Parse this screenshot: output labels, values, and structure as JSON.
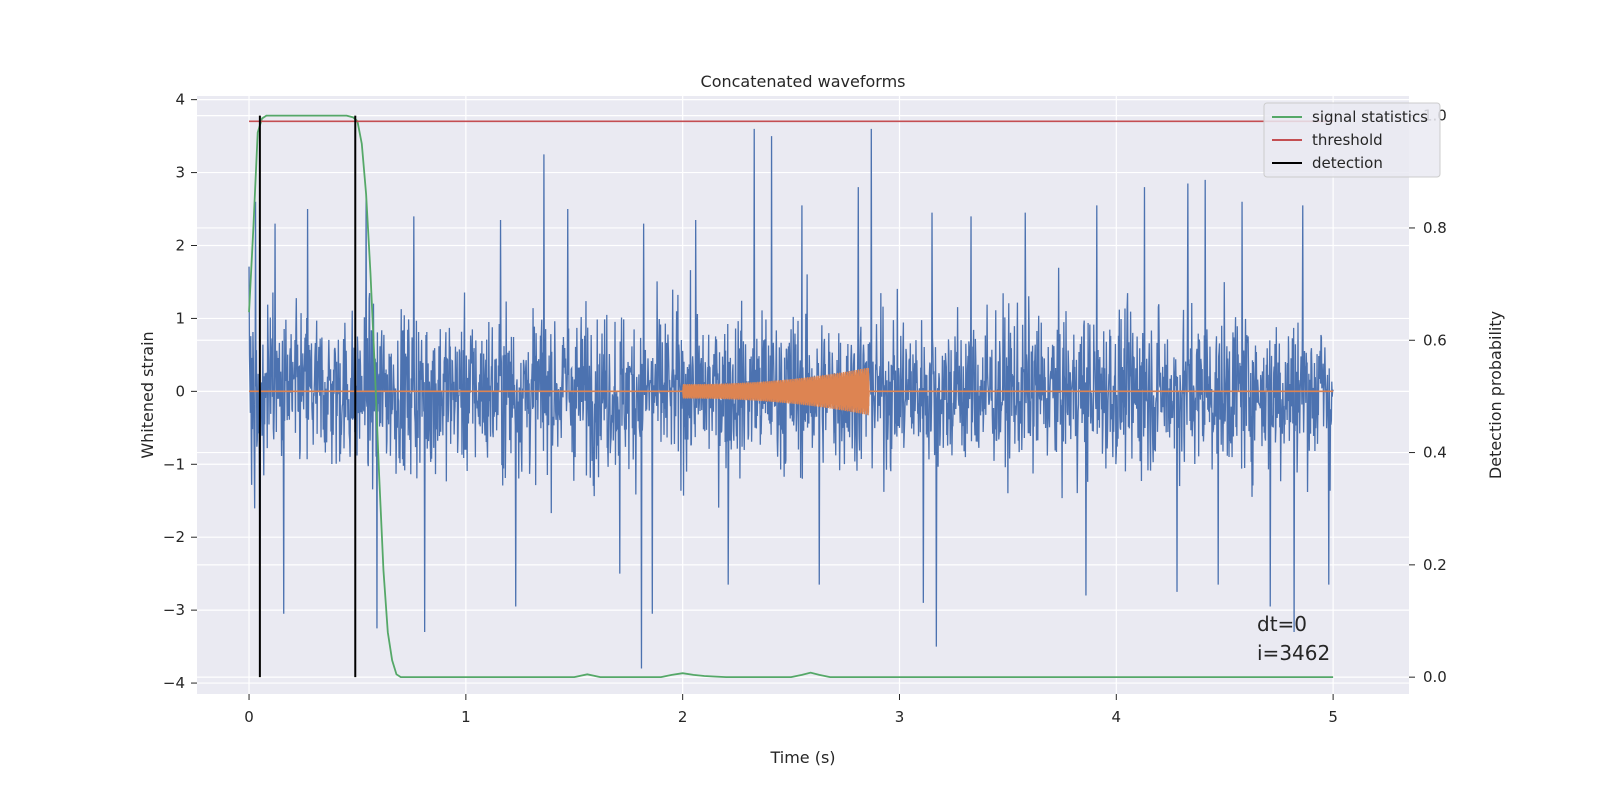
{
  "chart_data": {
    "type": "line",
    "title": "Concatenated waveforms",
    "xlabel": "Time (s)",
    "ylabel_left": "Whitened strain",
    "ylabel_right": "Detection probability",
    "xlim": [
      -0.24,
      5.35
    ],
    "ylim_left": [
      -4.15,
      4.05
    ],
    "ylim_right": [
      -0.03,
      1.035
    ],
    "x_ticks": [
      0,
      1,
      2,
      3,
      4,
      5
    ],
    "x_tick_labels": [
      "0",
      "1",
      "2",
      "3",
      "4",
      "5"
    ],
    "y_ticks_left": [
      -4,
      -3,
      -2,
      -1,
      0,
      1,
      2,
      3,
      4
    ],
    "y_tick_labels_left": [
      "−4",
      "−3",
      "−2",
      "−1",
      "0",
      "1",
      "2",
      "3",
      "4"
    ],
    "y_ticks_right": [
      0.0,
      0.2,
      0.4,
      0.6,
      0.8,
      1.0
    ],
    "y_tick_labels_right": [
      "0.0",
      "0.2",
      "0.4",
      "0.6",
      "0.8",
      "1.0"
    ],
    "grid": true,
    "legend_position": "top-right",
    "background_color": "#eaeaf2",
    "grid_color": "#ffffff",
    "noise_color": "#4c72b0",
    "injected_color": "#dd8452",
    "noise": {
      "x_start": 0,
      "x_end": 5,
      "typical_amplitude": 0.85,
      "peak_positive": [
        [
          0.03,
          2.6
        ],
        [
          0.12,
          2.3
        ],
        [
          0.27,
          2.5
        ],
        [
          0.54,
          2.7
        ],
        [
          0.76,
          2.4
        ],
        [
          1.16,
          2.35
        ],
        [
          1.36,
          3.25
        ],
        [
          1.47,
          2.5
        ],
        [
          1.71,
          2.55
        ],
        [
          1.82,
          2.3
        ],
        [
          2.06,
          2.35
        ],
        [
          2.33,
          3.6
        ],
        [
          2.41,
          3.5
        ],
        [
          2.55,
          2.55
        ],
        [
          2.81,
          2.8
        ],
        [
          2.87,
          3.6
        ],
        [
          3.15,
          2.45
        ],
        [
          3.33,
          2.4
        ],
        [
          3.58,
          2.45
        ],
        [
          3.91,
          2.55
        ],
        [
          4.13,
          2.8
        ],
        [
          4.33,
          2.85
        ],
        [
          4.41,
          2.9
        ],
        [
          4.58,
          2.6
        ],
        [
          4.71,
          3.35
        ],
        [
          4.86,
          2.55
        ]
      ],
      "peak_negative": [
        [
          0.05,
          -2.4
        ],
        [
          0.16,
          -3.05
        ],
        [
          0.59,
          -3.25
        ],
        [
          0.81,
          -3.3
        ],
        [
          1.23,
          -2.95
        ],
        [
          1.71,
          -2.5
        ],
        [
          1.81,
          -3.8
        ],
        [
          1.86,
          -3.05
        ],
        [
          2.21,
          -2.65
        ],
        [
          2.63,
          -2.65
        ],
        [
          3.11,
          -2.9
        ],
        [
          3.17,
          -3.5
        ],
        [
          3.86,
          -2.8
        ],
        [
          4.28,
          -2.75
        ],
        [
          4.47,
          -2.65
        ],
        [
          4.71,
          -2.95
        ],
        [
          4.82,
          -3.3
        ],
        [
          4.98,
          -2.65
        ]
      ]
    },
    "injected_signal": {
      "name": "",
      "x_start": 2.0,
      "x_end": 2.86,
      "amplitude_start": 0.1,
      "amplitude_peak": 0.33
    },
    "series": [
      {
        "name": "signal statistics",
        "axis": "right",
        "color": "#55a868",
        "x": [
          0.0,
          0.02,
          0.04,
          0.06,
          0.08,
          0.1,
          0.15,
          0.2,
          0.3,
          0.4,
          0.45,
          0.48,
          0.5,
          0.52,
          0.54,
          0.56,
          0.58,
          0.6,
          0.62,
          0.64,
          0.66,
          0.68,
          0.7,
          0.8,
          1.0,
          1.2,
          1.4,
          1.5,
          1.56,
          1.62,
          1.7,
          1.8,
          1.9,
          1.95,
          2.0,
          2.05,
          2.1,
          2.2,
          2.4,
          2.5,
          2.55,
          2.59,
          2.63,
          2.68,
          2.8,
          3.0,
          3.5,
          4.0,
          4.5,
          5.0
        ],
        "y": [
          0.65,
          0.8,
          0.97,
          0.995,
          1.0,
          1.0,
          1.0,
          1.0,
          1.0,
          1.0,
          1.0,
          0.997,
          0.99,
          0.95,
          0.86,
          0.72,
          0.55,
          0.36,
          0.19,
          0.08,
          0.03,
          0.005,
          0.0,
          0.0,
          0.0,
          0.0,
          0.0,
          0.0,
          0.005,
          0.0,
          0.0,
          0.0,
          0.0,
          0.004,
          0.007,
          0.004,
          0.002,
          0.0,
          0.0,
          0.0,
          0.004,
          0.008,
          0.004,
          0.0,
          0.0,
          0.0,
          0.0,
          0.0,
          0.0,
          0.0
        ]
      },
      {
        "name": "threshold",
        "axis": "right",
        "color": "#c44e52",
        "x": [
          0.0,
          5.0
        ],
        "y": [
          0.99,
          0.99
        ]
      }
    ],
    "detections": {
      "name": "detection",
      "color": "#000000",
      "x": [
        0.05,
        0.49
      ],
      "y_range_right": [
        0.0,
        1.0
      ]
    },
    "annotation": [
      "dt=0",
      "i=3462"
    ]
  }
}
